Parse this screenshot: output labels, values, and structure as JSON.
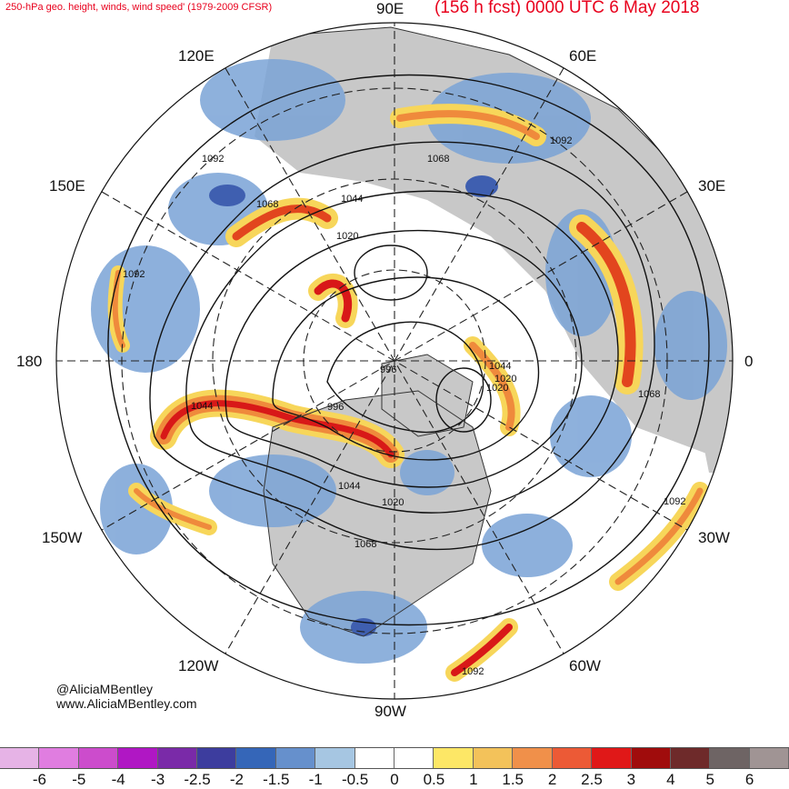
{
  "header": {
    "left_title": "250-hPa geo. height, winds, wind speed' (1979-2009 CFSR)",
    "right_title": "(156 h fcst) 0000 UTC 6 May 2018"
  },
  "longitude_labels": {
    "top": "90E",
    "top_right": "60E",
    "right_upper": "30E",
    "right": "0",
    "right_lower": "30W",
    "bottom_right": "60W",
    "bottom": "90W",
    "bottom_left": "120W",
    "left_lower": "150W",
    "left": "180",
    "left_upper": "150E",
    "top_left": "120E"
  },
  "contour_labels": [
    "1092",
    "1092",
    "1092",
    "1092",
    "1092",
    "1068",
    "1068",
    "1068",
    "1068",
    "1044",
    "1044",
    "1044",
    "1044",
    "1020",
    "1020",
    "1020",
    "1020",
    "996",
    "996"
  ],
  "credits": {
    "twitter": "@AliciaMBentley",
    "website": "www.AliciaMBentley.com"
  },
  "colorbar": {
    "ticks": [
      "-6",
      "-5",
      "-4",
      "-3",
      "-2.5",
      "-2",
      "-1.5",
      "-1",
      "-0.5",
      "0",
      "0.5",
      "1",
      "1.5",
      "2",
      "2.5",
      "3",
      "4",
      "5",
      "6"
    ],
    "colors": [
      "#e6b3e6",
      "#e07de0",
      "#cc4ccc",
      "#b017c4",
      "#7a2aa8",
      "#3d3d9e",
      "#3566b8",
      "#6690cc",
      "#a6c6e2",
      "#ffffff",
      "#ffffff",
      "#fde766",
      "#f3c25a",
      "#f0904a",
      "#ec5a36",
      "#e01818",
      "#a00c0c",
      "#6e2a2a",
      "#6e6464",
      "#a09494"
    ]
  }
}
